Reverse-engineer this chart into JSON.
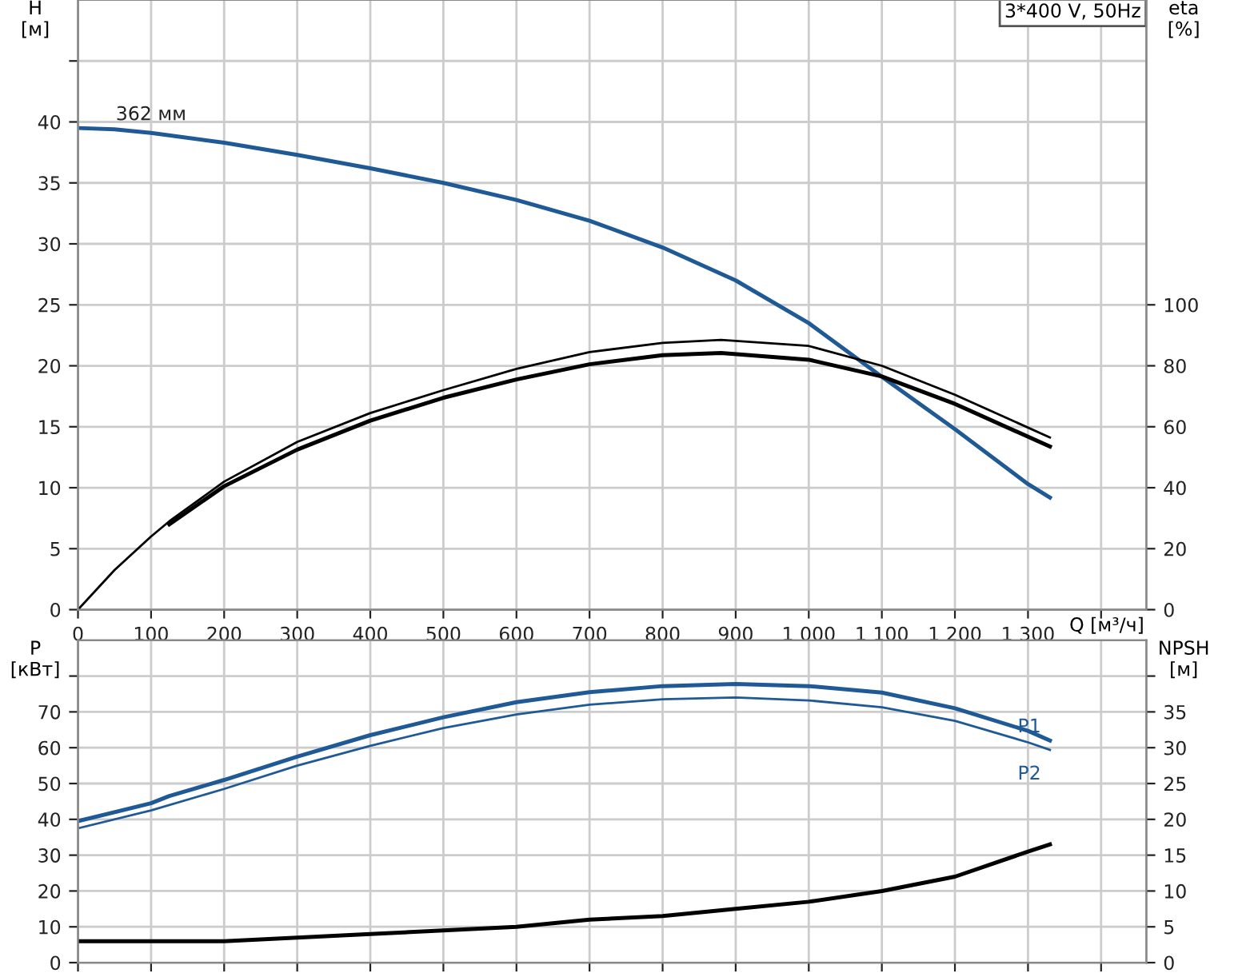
{
  "chart_data": [
    {
      "type": "line",
      "title": "3*400 V, 50Hz",
      "xlabel": "Q [м³/ч]",
      "ylabel": "H\n[м]",
      "y2label": "eta\n[%]",
      "xlim": [
        0,
        1462
      ],
      "xticks": [
        0,
        100,
        200,
        300,
        400,
        500,
        600,
        700,
        800,
        900,
        {
          "value": 1000,
          "label": "1 000"
        },
        {
          "value": 1100,
          "label": "1 100"
        },
        {
          "value": 1200,
          "label": "1 200"
        },
        {
          "value": 1300,
          "label": "1 300"
        },
        {
          "value": 1400,
          "label": null
        }
      ],
      "ylim": [
        0,
        50
      ],
      "yticks": [
        0,
        5,
        10,
        15,
        20,
        25,
        30,
        35,
        40,
        {
          "value": 45,
          "label": null
        }
      ],
      "y2lim": [
        0,
        200
      ],
      "y2ticks": [
        0,
        20,
        40,
        60,
        80,
        100
      ],
      "grid": true,
      "marker": "none",
      "line_style": "solid",
      "series": [
        {
          "color": "#1f5a96",
          "x": [
            0,
            50,
            100,
            200,
            300,
            400,
            500,
            600,
            700,
            800,
            900,
            1000,
            1100,
            1200,
            1300,
            1330
          ],
          "values": [
            39.5,
            39.4,
            39.1,
            38.3,
            37.3,
            36.2,
            35.0,
            33.6,
            31.9,
            29.7,
            27.0,
            23.5,
            19.1,
            14.8,
            10.3,
            9.2
          ]
        },
        {
          "color": "#000000",
          "axis": "y2",
          "x": [
            0,
            50,
            100,
            125,
            200,
            300,
            400,
            500,
            600,
            700,
            800,
            880,
            1000,
            1100,
            1200,
            1330
          ],
          "values": [
            0,
            13,
            24,
            29,
            42,
            55,
            64.5,
            72,
            79,
            84.5,
            87.5,
            88.5,
            86.5,
            80,
            70.5,
            56.5
          ]
        },
        {
          "color": "#000000",
          "axis": "y2",
          "x": [
            125,
            200,
            300,
            400,
            500,
            600,
            700,
            800,
            880,
            1000,
            1100,
            1200,
            1330
          ],
          "values": [
            28,
            40.5,
            52.5,
            62,
            69.5,
            75.5,
            80.5,
            83.5,
            84.2,
            82,
            76.5,
            67.5,
            53.5
          ]
        }
      ],
      "annotations": [
        {
          "text": "362 мм",
          "x": 100,
          "y": 39.1
        }
      ]
    },
    {
      "type": "line",
      "ylabel": "P\n[кВт]",
      "y2label": "NPSH\n[м]",
      "xlim": [
        0,
        1462
      ],
      "xticks": [
        0,
        100,
        200,
        300,
        400,
        500,
        600,
        700,
        800,
        900,
        1000,
        1100,
        1200,
        1300,
        1400
      ],
      "tick_labels": "y",
      "ylim": [
        0,
        90
      ],
      "yticks": [
        0,
        10,
        20,
        30,
        40,
        50,
        60,
        70,
        {
          "value": 80,
          "label": null
        }
      ],
      "y2lim": [
        0,
        45
      ],
      "y2ticks": [
        0,
        5,
        10,
        15,
        20,
        25,
        30,
        35,
        {
          "value": 40,
          "label": null
        }
      ],
      "grid": true,
      "marker": "none",
      "line_style": "solid",
      "series": [
        {
          "name": "P1",
          "color": "#1f5a96",
          "x": [
            0,
            100,
            125,
            200,
            300,
            400,
            500,
            600,
            700,
            800,
            900,
            1000,
            1100,
            1200,
            1300,
            1330
          ],
          "values": [
            39.5,
            44.5,
            46.5,
            51,
            57.5,
            63.5,
            68.5,
            72.7,
            75.5,
            77.2,
            77.8,
            77.2,
            75.4,
            71,
            64.7,
            62
          ]
        },
        {
          "name": "P2",
          "color": "#1f5a96",
          "x": [
            0,
            100,
            200,
            300,
            400,
            500,
            600,
            700,
            800,
            900,
            1000,
            1100,
            1200,
            1300,
            1330
          ],
          "values": [
            37.5,
            42.5,
            48.5,
            55,
            60.5,
            65.5,
            69.3,
            72,
            73.5,
            74,
            73.2,
            71.3,
            67.5,
            61.5,
            59.4
          ]
        },
        {
          "color": "#000000",
          "axis": "y2",
          "x": [
            0,
            100,
            200,
            300,
            400,
            500,
            600,
            700,
            800,
            900,
            1000,
            1100,
            1200,
            1300,
            1330
          ],
          "values": [
            3,
            3,
            3,
            3.5,
            4,
            4.5,
            5,
            6,
            6.5,
            7.5,
            8.5,
            10,
            12,
            15.5,
            16.5
          ]
        }
      ]
    }
  ]
}
